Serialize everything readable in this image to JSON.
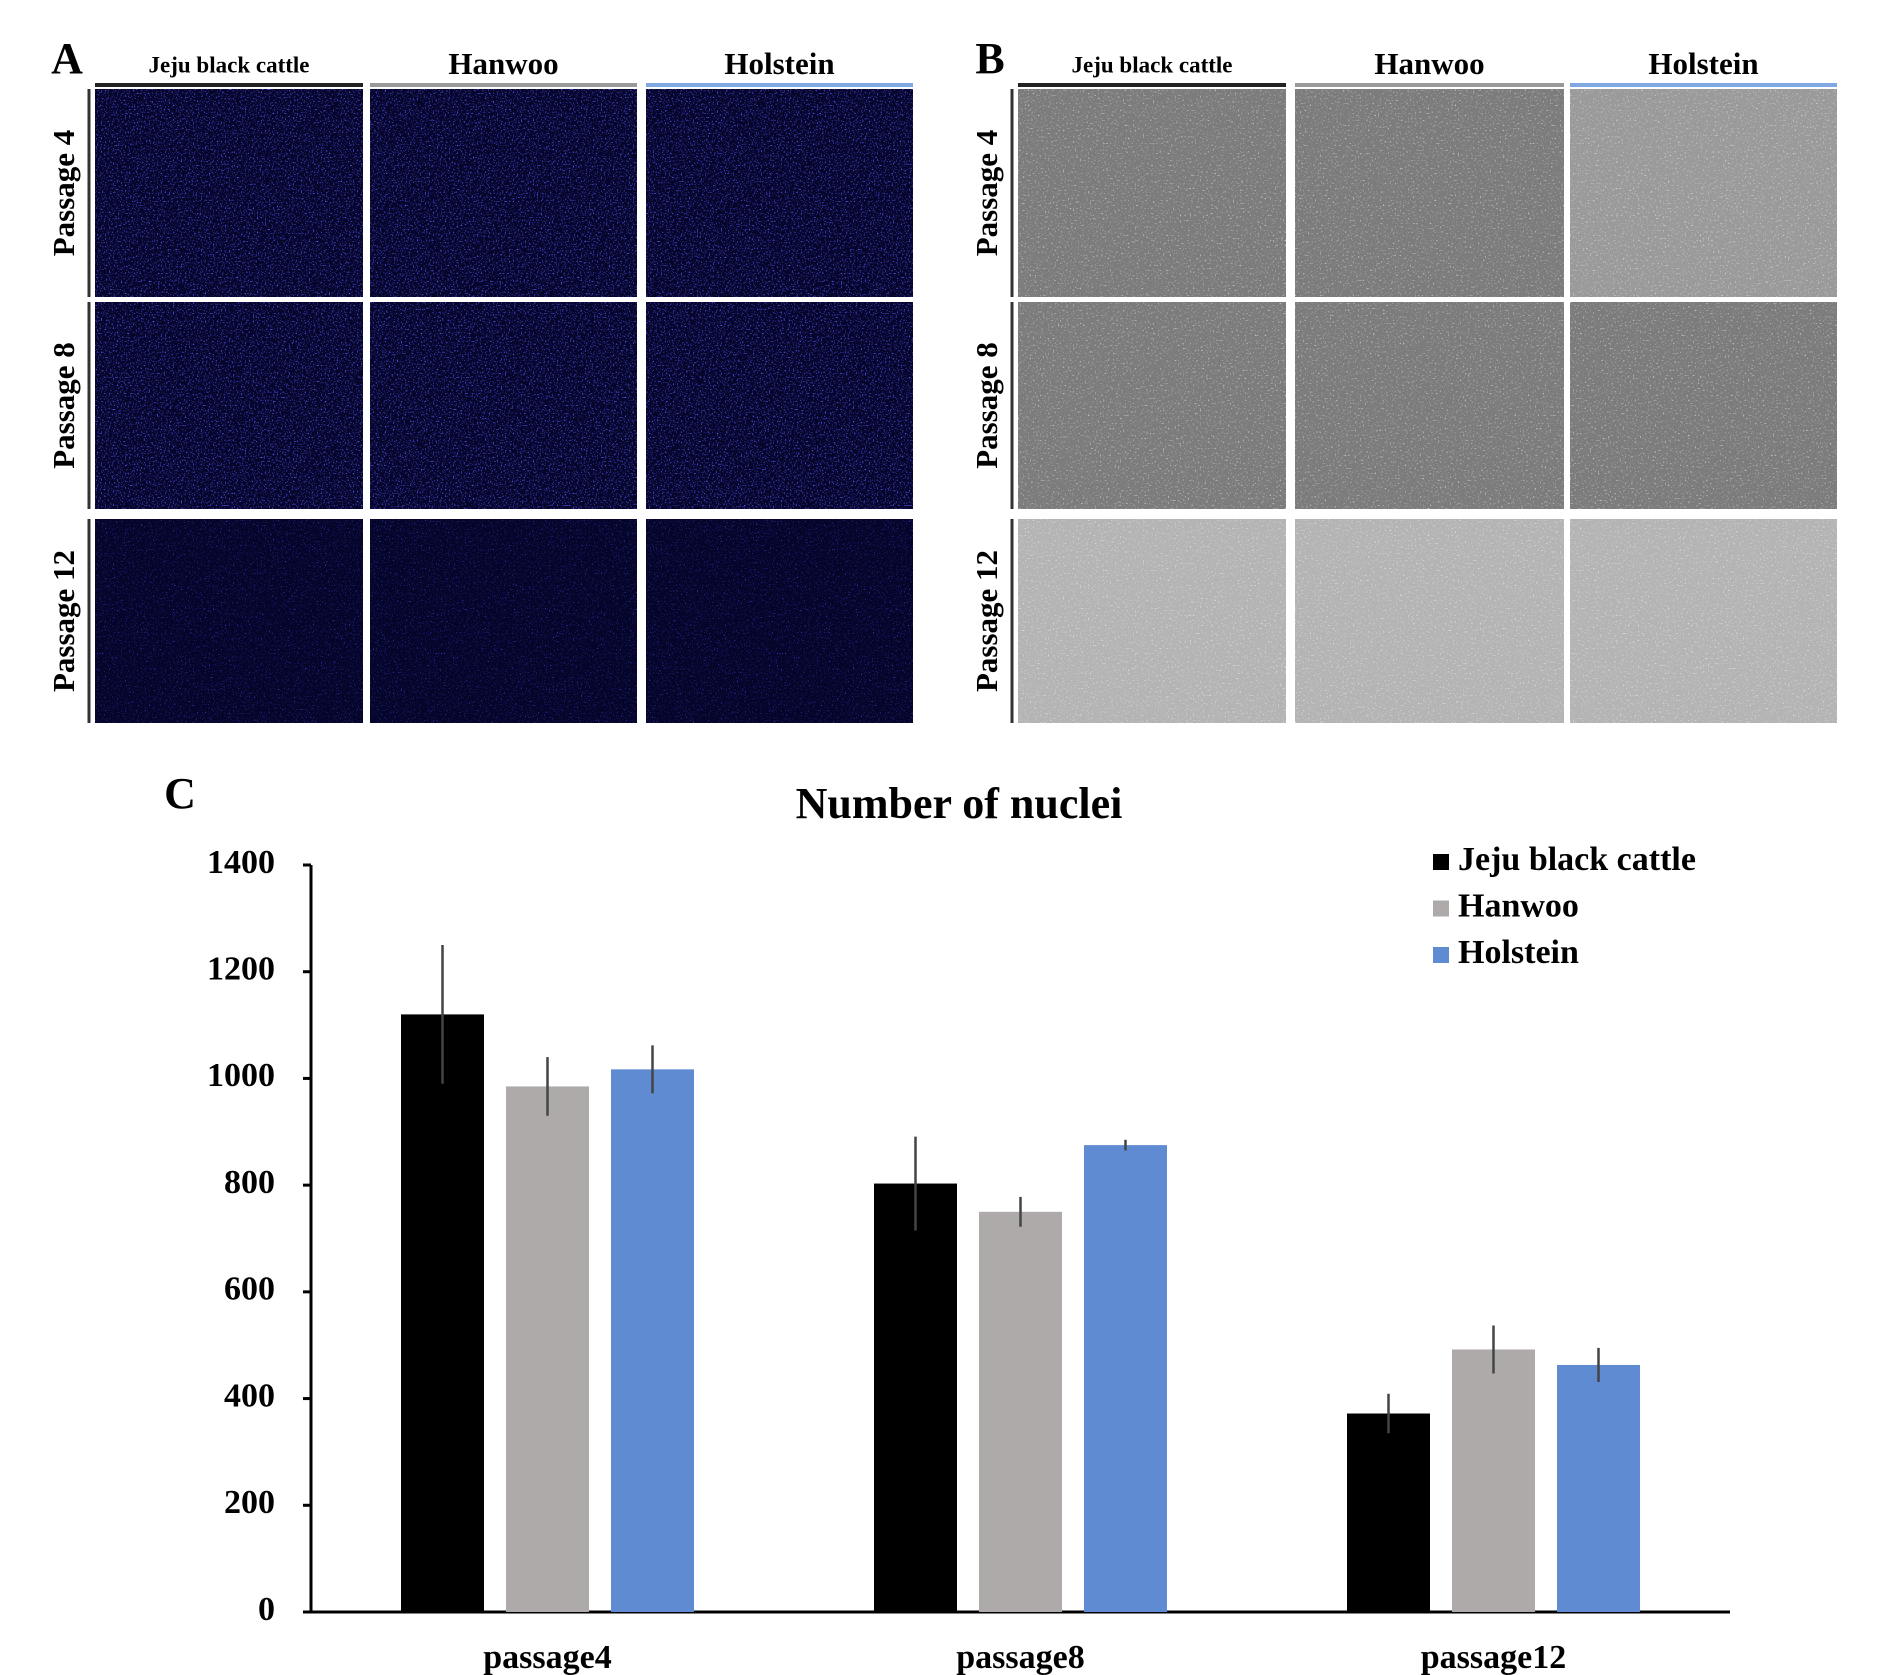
{
  "panels": [
    {
      "label": "A",
      "columns": [
        "Jeju black cattle",
        "Hanwoo",
        "Holstein"
      ],
      "rows": [
        "Passage 4",
        "Passage 8",
        "Passage 12"
      ]
    },
    {
      "label": "B",
      "columns": [
        "Jeju black cattle",
        "Hanwoo",
        "Holstein"
      ],
      "rows": [
        "Passage 4",
        "Passage 8",
        "Passage 12"
      ]
    }
  ],
  "chart_data": {
    "type": "bar",
    "panel_label": "C",
    "title": "Number of nuclei",
    "categories": [
      "passage4",
      "passage8",
      "passage12"
    ],
    "series": [
      {
        "name": "Jeju black cattle",
        "color": "#000000",
        "values": [
          1120,
          803,
          372
        ],
        "errors": [
          130,
          88,
          37
        ]
      },
      {
        "name": "Hanwoo",
        "color": "#aeaaaa",
        "values": [
          985,
          750,
          492
        ],
        "errors": [
          55,
          28,
          45
        ]
      },
      {
        "name": "Holstein",
        "color": "#5f8bd2",
        "values": [
          1017,
          875,
          463
        ],
        "errors": [
          45,
          10,
          32
        ]
      }
    ],
    "ylim": [
      0,
      1400
    ],
    "yticks": [
      0,
      200,
      400,
      600,
      800,
      1000,
      1200,
      1400
    ],
    "legend": "top-right"
  }
}
